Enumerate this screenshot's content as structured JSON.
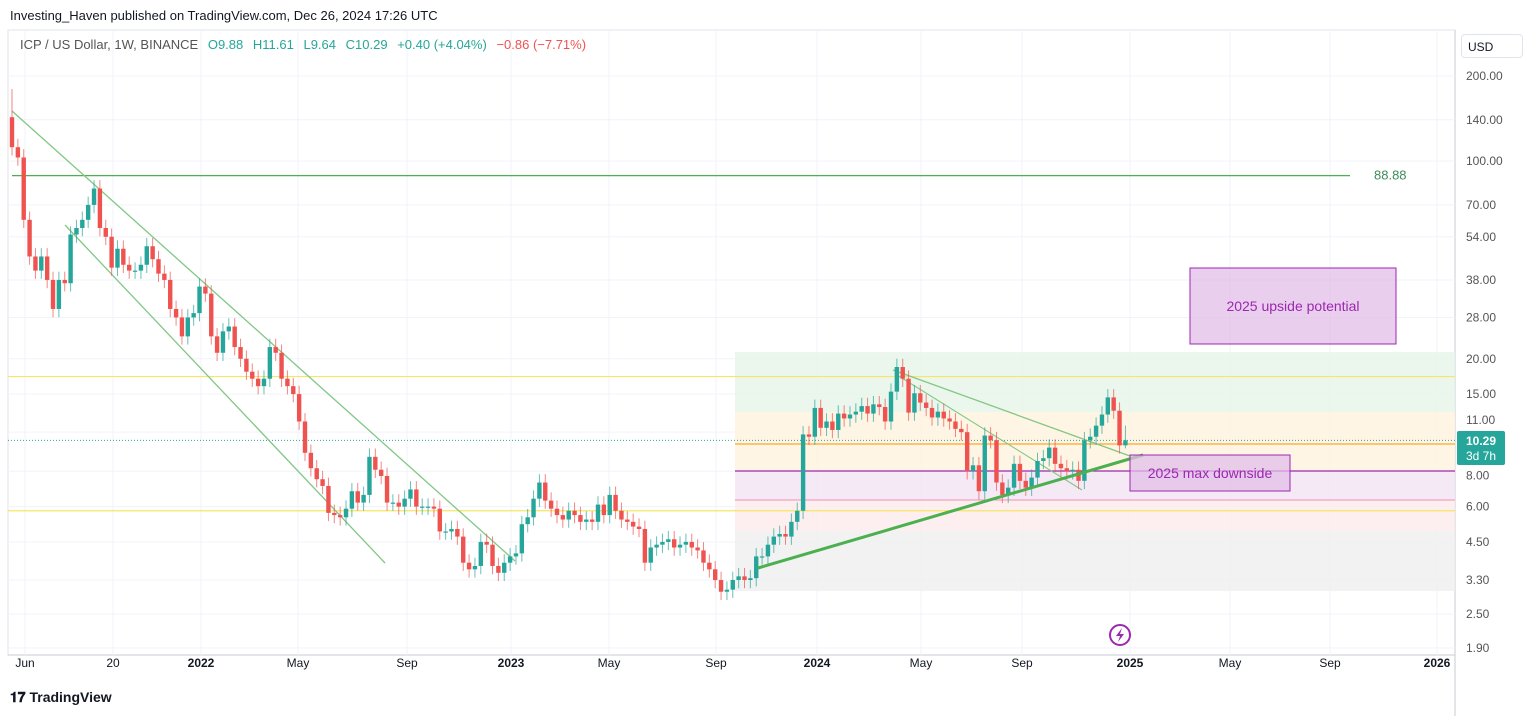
{
  "header": {
    "published": "Investing_Haven published on TradingView.com, Dec 26, 2024 17:26 UTC"
  },
  "legend": {
    "symbol": "ICP / US Dollar, 1W, BINANCE",
    "open": "O9.88",
    "high": "H11.61",
    "low": "L9.64",
    "close": "C10.29",
    "change": "+0.40 (+4.04%)",
    "change2": "−0.86 (−7.71%)"
  },
  "currency_button": "USD",
  "last_price_label": {
    "price": "10.29",
    "countdown": "3d 7h"
  },
  "logo": "TradingView",
  "colors": {
    "up": "#26a69a",
    "down": "#ef5350",
    "annotation": "#9c27b0",
    "level_88": "#4caf50"
  },
  "icons": [
    "lightning-icon",
    "tradingview-logo-icon"
  ],
  "chart_data": {
    "type": "candlestick",
    "interval": "1W",
    "scale": "log",
    "ylim": [
      1.9,
      200
    ],
    "y_ticks": [
      "200.00",
      "140.00",
      "100.00",
      "70.00",
      "54.00",
      "38.00",
      "28.00",
      "20.00",
      "15.00",
      "11.00",
      "8.00",
      "6.00",
      "4.50",
      "3.30",
      "2.50",
      "1.90"
    ],
    "x_ticks": [
      "Jun",
      "20",
      "2022",
      "May",
      "Sep",
      "2023",
      "May",
      "Sep",
      "2024",
      "May",
      "Sep",
      "2025",
      "May",
      "Sep",
      "2026"
    ],
    "first_open": 143,
    "closes": [
      112,
      103,
      62,
      46,
      41,
      46,
      38,
      30,
      38,
      37,
      55,
      58,
      62,
      70,
      80,
      58,
      54,
      42,
      49,
      43,
      41,
      41,
      43,
      50,
      45,
      40,
      38,
      30,
      28,
      24,
      28,
      29,
      36,
      34,
      24,
      21,
      25,
      26,
      22,
      20,
      18,
      17,
      16,
      17,
      22,
      21,
      17,
      16,
      15,
      12,
      9.3,
      8.2,
      7.5,
      7.1,
      5.7,
      5.6,
      5.5,
      5.9,
      6.8,
      6.2,
      6.6,
      9.0,
      8.1,
      7.7,
      6.2,
      6.2,
      6.0,
      6.4,
      6.9,
      6.0,
      6.0,
      6.0,
      5.9,
      4.9,
      4.9,
      5.0,
      4.7,
      3.8,
      3.6,
      3.7,
      4.5,
      4.4,
      3.7,
      3.5,
      3.8,
      4.0,
      4.1,
      5.2,
      5.5,
      6.4,
      7.3,
      6.3,
      5.9,
      5.6,
      5.4,
      5.8,
      5.6,
      5.3,
      5.4,
      5.3,
      6.1,
      5.6,
      6.6,
      5.8,
      5.4,
      5.3,
      5.1,
      5.0,
      3.8,
      4.3,
      4.4,
      4.5,
      4.6,
      4.3,
      4.4,
      4.5,
      4.3,
      4.2,
      3.8,
      3.6,
      3.3,
      3.0,
      3.05,
      3.3,
      3.4,
      3.3,
      3.35,
      4.0,
      4.0,
      4.4,
      4.7,
      4.8,
      4.7,
      5.3,
      5.8,
      10.8,
      10.6,
      13.4,
      11.4,
      12,
      11.2,
      12.8,
      12.3,
      12.7,
      13,
      13.6,
      12.8,
      13.8,
      13.5,
      12,
      15.3,
      18.7,
      17,
      12.9,
      15.1,
      14,
      13.4,
      12.4,
      13,
      12.3,
      12,
      11.3,
      11.0,
      8.0,
      8.4,
      6.8,
      10.7,
      10.3,
      7.3,
      6.6,
      7.0,
      8.5,
      7.4,
      7.0,
      7.6,
      8.7,
      8.9,
      9.7,
      8.5,
      8.2,
      8.0,
      8.1,
      7.4,
      10.3,
      10.6,
      11.6,
      12.7,
      14.6,
      13.1,
      9.88,
      10.29
    ],
    "last_candle": {
      "open": 9.88,
      "high": 11.61,
      "low": 9.64,
      "close": 10.29
    },
    "levels": [
      {
        "value": 88.88,
        "label": "88.88"
      },
      {
        "value": 17.3
      },
      {
        "value": 5.8
      },
      {
        "value": 10.29
      }
    ],
    "annotations": [
      {
        "text": "2025 upside potential",
        "price_range": [
          23,
          41
        ]
      },
      {
        "text": "2025 max downside",
        "price_range": [
          6.9,
          9.1
        ]
      }
    ],
    "grid": true
  }
}
